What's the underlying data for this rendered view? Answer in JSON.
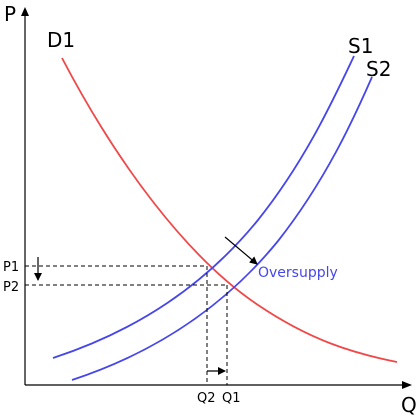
{
  "axes": {
    "x_title": "Q",
    "y_title": "P"
  },
  "curves": {
    "demand_label": "D1",
    "supply1_label": "S1",
    "supply2_label": "S2"
  },
  "ticks": {
    "p1": "P1",
    "p2": "P2",
    "q1": "Q1",
    "q2": "Q2"
  },
  "annotation": {
    "text": "Oversupply"
  },
  "colors": {
    "demand": "#f04848",
    "supply": "#4646ec",
    "axis": "#000000",
    "guide": "#000000",
    "annotation_text": "#4646ec"
  }
}
